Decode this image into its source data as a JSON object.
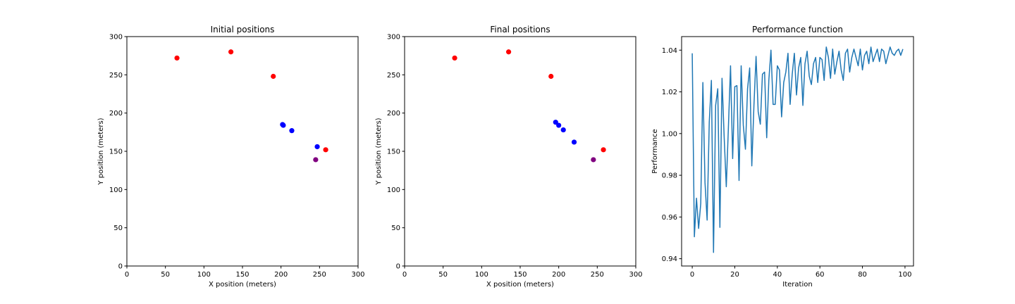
{
  "chart_data": [
    {
      "type": "scatter",
      "title": "Initial positions",
      "xlabel": "X position (meters)",
      "ylabel": "Y position (meters)",
      "xlim": [
        0,
        300
      ],
      "ylim": [
        0,
        300
      ],
      "xticks": [
        0,
        50,
        100,
        150,
        200,
        250,
        300
      ],
      "yticks": [
        0,
        50,
        100,
        150,
        200,
        250,
        300
      ],
      "grid": false,
      "series": [
        {
          "color": "#ff0000",
          "points": [
            [
              65,
              272
            ],
            [
              135,
              280
            ],
            [
              190,
              248
            ],
            [
              258,
              152
            ]
          ]
        },
        {
          "color": "#0000ff",
          "points": [
            [
              202,
              185
            ],
            [
              203,
              184
            ],
            [
              214,
              177
            ],
            [
              247,
              156
            ]
          ]
        },
        {
          "color": "#800080",
          "points": [
            [
              245,
              139
            ]
          ]
        }
      ]
    },
    {
      "type": "scatter",
      "title": "Final positions",
      "xlabel": "X position (meters)",
      "ylabel": "Y position (meters)",
      "xlim": [
        0,
        300
      ],
      "ylim": [
        0,
        300
      ],
      "xticks": [
        0,
        50,
        100,
        150,
        200,
        250,
        300
      ],
      "yticks": [
        0,
        50,
        100,
        150,
        200,
        250,
        300
      ],
      "grid": false,
      "series": [
        {
          "color": "#ff0000",
          "points": [
            [
              65,
              272
            ],
            [
              135,
              280
            ],
            [
              190,
              248
            ],
            [
              258,
              152
            ]
          ]
        },
        {
          "color": "#0000ff",
          "points": [
            [
              196,
              188
            ],
            [
              200,
              184
            ],
            [
              206,
              178
            ],
            [
              220,
              162
            ]
          ]
        },
        {
          "color": "#800080",
          "points": [
            [
              245,
              139
            ]
          ]
        }
      ]
    },
    {
      "type": "line",
      "title": "Performance function",
      "xlabel": "Iteration",
      "ylabel": "Performance",
      "xlim": [
        -5,
        104
      ],
      "ylim": [
        0.9365,
        1.0465
      ],
      "xticks": [
        0,
        20,
        40,
        60,
        80,
        100
      ],
      "yticks": [
        0.94,
        0.96,
        0.98,
        1.0,
        1.02,
        1.04
      ],
      "ytick_labels": [
        "0.94",
        "0.96",
        "0.98",
        "1.00",
        "1.02",
        "1.04"
      ],
      "grid": false,
      "series": [
        {
          "color": "#1f77b4",
          "x": [
            0,
            1,
            2,
            3,
            4,
            5,
            6,
            7,
            8,
            9,
            10,
            11,
            12,
            13,
            14,
            15,
            16,
            17,
            18,
            19,
            20,
            21,
            22,
            23,
            24,
            25,
            26,
            27,
            28,
            29,
            30,
            31,
            32,
            33,
            34,
            35,
            36,
            37,
            38,
            39,
            40,
            41,
            42,
            43,
            44,
            45,
            46,
            47,
            48,
            49,
            50,
            51,
            52,
            53,
            54,
            55,
            56,
            57,
            58,
            59,
            60,
            61,
            62,
            63,
            64,
            65,
            66,
            67,
            68,
            69,
            70,
            71,
            72,
            73,
            74,
            75,
            76,
            77,
            78,
            79,
            80,
            81,
            82,
            83,
            84,
            85,
            86,
            87,
            88,
            89,
            90,
            91,
            92,
            93,
            94,
            95,
            96,
            97,
            98,
            99
          ],
          "y": [
            1.0385,
            0.9505,
            0.969,
            0.9545,
            0.9665,
            1.0245,
            0.9765,
            0.9585,
            1.0055,
            1.0255,
            0.943,
            1.0135,
            1.0215,
            0.955,
            1.0265,
            0.9985,
            0.9745,
            1.003,
            1.0325,
            0.988,
            1.0225,
            1.023,
            0.9775,
            1.0325,
            1.004,
            0.9925,
            1.0215,
            1.0315,
            0.9845,
            1.0135,
            1.037,
            1.0105,
            1.0045,
            1.0285,
            1.0295,
            0.998,
            1.0255,
            1.04,
            1.014,
            1.014,
            1.0325,
            1.0305,
            1.008,
            1.0245,
            1.0295,
            1.0385,
            1.014,
            1.0285,
            1.0385,
            1.0185,
            1.0315,
            1.0365,
            1.0135,
            1.0335,
            1.0395,
            1.0275,
            1.0235,
            1.0335,
            1.0365,
            1.0245,
            1.0365,
            1.0355,
            1.0255,
            1.0415,
            1.0365,
            1.0265,
            1.0405,
            1.0285,
            1.0345,
            1.0395,
            1.0305,
            1.0255,
            1.0385,
            1.0405,
            1.0295,
            1.0365,
            1.0405,
            1.0365,
            1.0325,
            1.0405,
            1.0305,
            1.0375,
            1.0395,
            1.0335,
            1.0415,
            1.0345,
            1.0375,
            1.0405,
            1.0345,
            1.0405,
            1.0395,
            1.0335,
            1.0375,
            1.0415,
            1.0385,
            1.0375,
            1.0395,
            1.0405,
            1.0375,
            1.0405
          ]
        }
      ]
    }
  ]
}
